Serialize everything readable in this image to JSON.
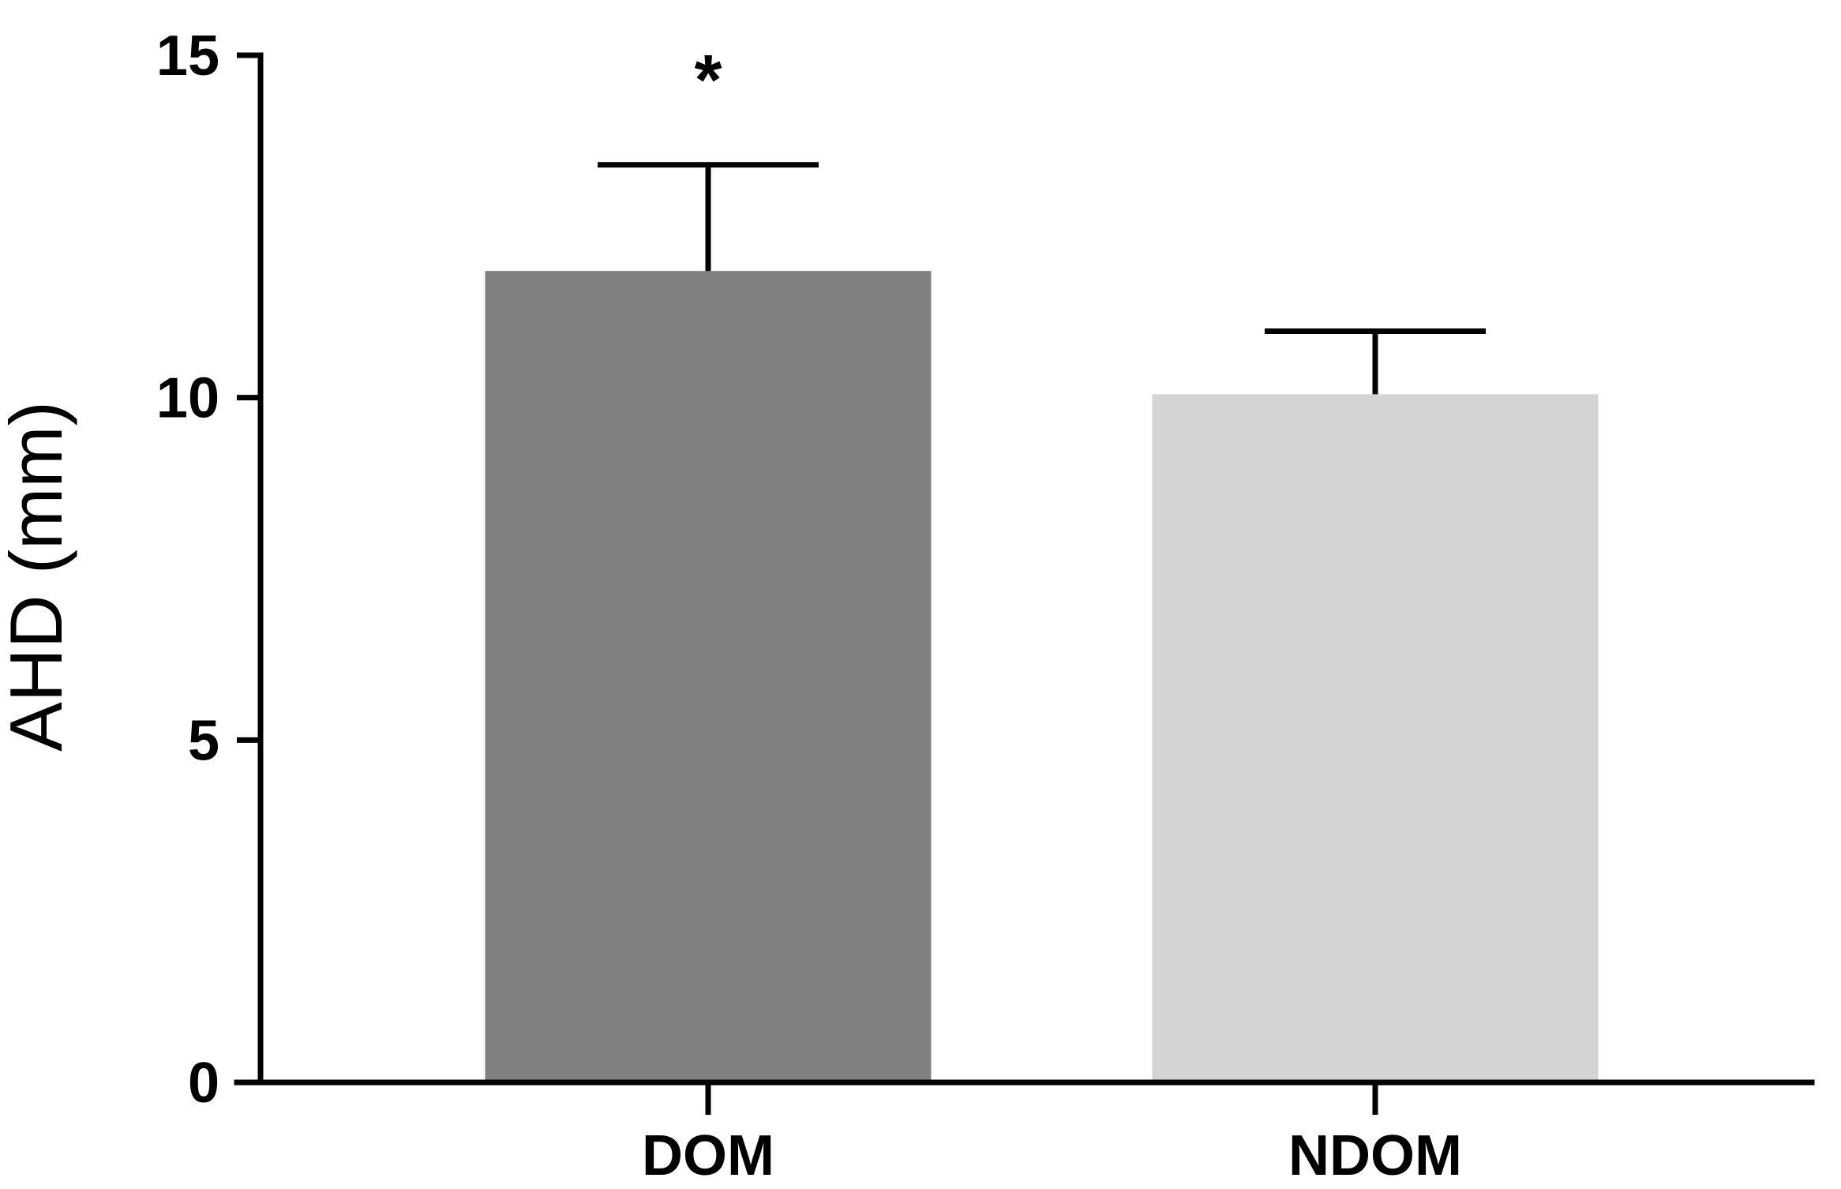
{
  "chart_data": {
    "type": "bar",
    "categories": [
      "DOM",
      "NDOM"
    ],
    "values": [
      11.85,
      10.05
    ],
    "error_upper": [
      13.4,
      10.97
    ],
    "significance": [
      "*",
      ""
    ],
    "ylabel": "AHD (mm)",
    "xlabel": "",
    "title": "",
    "ylim": [
      0,
      15
    ],
    "yticks": [
      0,
      5,
      10,
      15
    ],
    "ytick_labels": [
      "0",
      "5",
      "10",
      "15"
    ],
    "grid": false,
    "legend": "none",
    "colors": [
      "#808080",
      "#d4d4d4"
    ],
    "axis_color": "#000000"
  }
}
